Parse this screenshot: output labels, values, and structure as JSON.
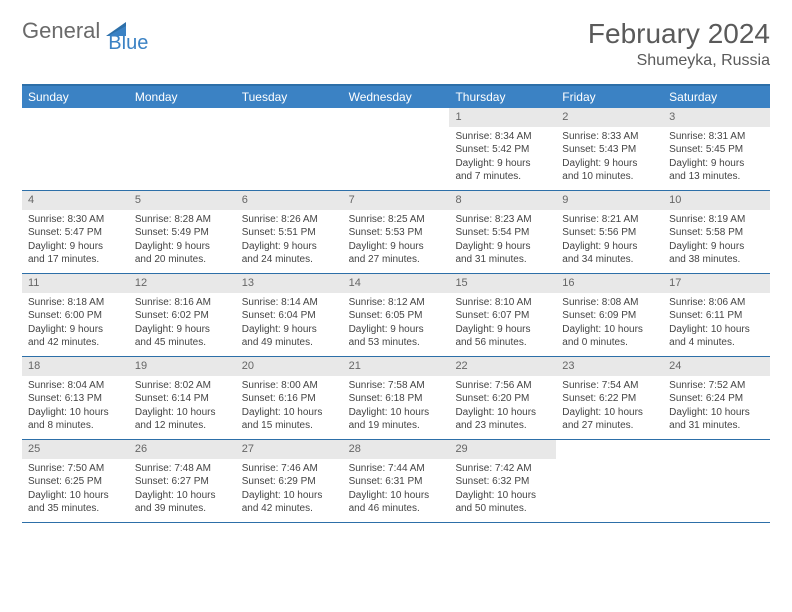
{
  "logo": {
    "text1": "General",
    "text2": "Blue"
  },
  "title": "February 2024",
  "location": "Shumeyka, Russia",
  "colors": {
    "header_bar": "#3b82c4",
    "border": "#2d6fa8",
    "daynum_bg": "#e8e8e8",
    "text": "#444444",
    "logo_gray": "#6a6a6a",
    "logo_blue": "#3b82c4"
  },
  "weekdays": [
    "Sunday",
    "Monday",
    "Tuesday",
    "Wednesday",
    "Thursday",
    "Friday",
    "Saturday"
  ],
  "weeks": [
    [
      {
        "empty": true
      },
      {
        "empty": true
      },
      {
        "empty": true
      },
      {
        "empty": true
      },
      {
        "num": "1",
        "sunrise": "Sunrise: 8:34 AM",
        "sunset": "Sunset: 5:42 PM",
        "d1": "Daylight: 9 hours",
        "d2": "and 7 minutes."
      },
      {
        "num": "2",
        "sunrise": "Sunrise: 8:33 AM",
        "sunset": "Sunset: 5:43 PM",
        "d1": "Daylight: 9 hours",
        "d2": "and 10 minutes."
      },
      {
        "num": "3",
        "sunrise": "Sunrise: 8:31 AM",
        "sunset": "Sunset: 5:45 PM",
        "d1": "Daylight: 9 hours",
        "d2": "and 13 minutes."
      }
    ],
    [
      {
        "num": "4",
        "sunrise": "Sunrise: 8:30 AM",
        "sunset": "Sunset: 5:47 PM",
        "d1": "Daylight: 9 hours",
        "d2": "and 17 minutes."
      },
      {
        "num": "5",
        "sunrise": "Sunrise: 8:28 AM",
        "sunset": "Sunset: 5:49 PM",
        "d1": "Daylight: 9 hours",
        "d2": "and 20 minutes."
      },
      {
        "num": "6",
        "sunrise": "Sunrise: 8:26 AM",
        "sunset": "Sunset: 5:51 PM",
        "d1": "Daylight: 9 hours",
        "d2": "and 24 minutes."
      },
      {
        "num": "7",
        "sunrise": "Sunrise: 8:25 AM",
        "sunset": "Sunset: 5:53 PM",
        "d1": "Daylight: 9 hours",
        "d2": "and 27 minutes."
      },
      {
        "num": "8",
        "sunrise": "Sunrise: 8:23 AM",
        "sunset": "Sunset: 5:54 PM",
        "d1": "Daylight: 9 hours",
        "d2": "and 31 minutes."
      },
      {
        "num": "9",
        "sunrise": "Sunrise: 8:21 AM",
        "sunset": "Sunset: 5:56 PM",
        "d1": "Daylight: 9 hours",
        "d2": "and 34 minutes."
      },
      {
        "num": "10",
        "sunrise": "Sunrise: 8:19 AM",
        "sunset": "Sunset: 5:58 PM",
        "d1": "Daylight: 9 hours",
        "d2": "and 38 minutes."
      }
    ],
    [
      {
        "num": "11",
        "sunrise": "Sunrise: 8:18 AM",
        "sunset": "Sunset: 6:00 PM",
        "d1": "Daylight: 9 hours",
        "d2": "and 42 minutes."
      },
      {
        "num": "12",
        "sunrise": "Sunrise: 8:16 AM",
        "sunset": "Sunset: 6:02 PM",
        "d1": "Daylight: 9 hours",
        "d2": "and 45 minutes."
      },
      {
        "num": "13",
        "sunrise": "Sunrise: 8:14 AM",
        "sunset": "Sunset: 6:04 PM",
        "d1": "Daylight: 9 hours",
        "d2": "and 49 minutes."
      },
      {
        "num": "14",
        "sunrise": "Sunrise: 8:12 AM",
        "sunset": "Sunset: 6:05 PM",
        "d1": "Daylight: 9 hours",
        "d2": "and 53 minutes."
      },
      {
        "num": "15",
        "sunrise": "Sunrise: 8:10 AM",
        "sunset": "Sunset: 6:07 PM",
        "d1": "Daylight: 9 hours",
        "d2": "and 56 minutes."
      },
      {
        "num": "16",
        "sunrise": "Sunrise: 8:08 AM",
        "sunset": "Sunset: 6:09 PM",
        "d1": "Daylight: 10 hours",
        "d2": "and 0 minutes."
      },
      {
        "num": "17",
        "sunrise": "Sunrise: 8:06 AM",
        "sunset": "Sunset: 6:11 PM",
        "d1": "Daylight: 10 hours",
        "d2": "and 4 minutes."
      }
    ],
    [
      {
        "num": "18",
        "sunrise": "Sunrise: 8:04 AM",
        "sunset": "Sunset: 6:13 PM",
        "d1": "Daylight: 10 hours",
        "d2": "and 8 minutes."
      },
      {
        "num": "19",
        "sunrise": "Sunrise: 8:02 AM",
        "sunset": "Sunset: 6:14 PM",
        "d1": "Daylight: 10 hours",
        "d2": "and 12 minutes."
      },
      {
        "num": "20",
        "sunrise": "Sunrise: 8:00 AM",
        "sunset": "Sunset: 6:16 PM",
        "d1": "Daylight: 10 hours",
        "d2": "and 15 minutes."
      },
      {
        "num": "21",
        "sunrise": "Sunrise: 7:58 AM",
        "sunset": "Sunset: 6:18 PM",
        "d1": "Daylight: 10 hours",
        "d2": "and 19 minutes."
      },
      {
        "num": "22",
        "sunrise": "Sunrise: 7:56 AM",
        "sunset": "Sunset: 6:20 PM",
        "d1": "Daylight: 10 hours",
        "d2": "and 23 minutes."
      },
      {
        "num": "23",
        "sunrise": "Sunrise: 7:54 AM",
        "sunset": "Sunset: 6:22 PM",
        "d1": "Daylight: 10 hours",
        "d2": "and 27 minutes."
      },
      {
        "num": "24",
        "sunrise": "Sunrise: 7:52 AM",
        "sunset": "Sunset: 6:24 PM",
        "d1": "Daylight: 10 hours",
        "d2": "and 31 minutes."
      }
    ],
    [
      {
        "num": "25",
        "sunrise": "Sunrise: 7:50 AM",
        "sunset": "Sunset: 6:25 PM",
        "d1": "Daylight: 10 hours",
        "d2": "and 35 minutes."
      },
      {
        "num": "26",
        "sunrise": "Sunrise: 7:48 AM",
        "sunset": "Sunset: 6:27 PM",
        "d1": "Daylight: 10 hours",
        "d2": "and 39 minutes."
      },
      {
        "num": "27",
        "sunrise": "Sunrise: 7:46 AM",
        "sunset": "Sunset: 6:29 PM",
        "d1": "Daylight: 10 hours",
        "d2": "and 42 minutes."
      },
      {
        "num": "28",
        "sunrise": "Sunrise: 7:44 AM",
        "sunset": "Sunset: 6:31 PM",
        "d1": "Daylight: 10 hours",
        "d2": "and 46 minutes."
      },
      {
        "num": "29",
        "sunrise": "Sunrise: 7:42 AM",
        "sunset": "Sunset: 6:32 PM",
        "d1": "Daylight: 10 hours",
        "d2": "and 50 minutes."
      },
      {
        "empty": true
      },
      {
        "empty": true
      }
    ]
  ]
}
